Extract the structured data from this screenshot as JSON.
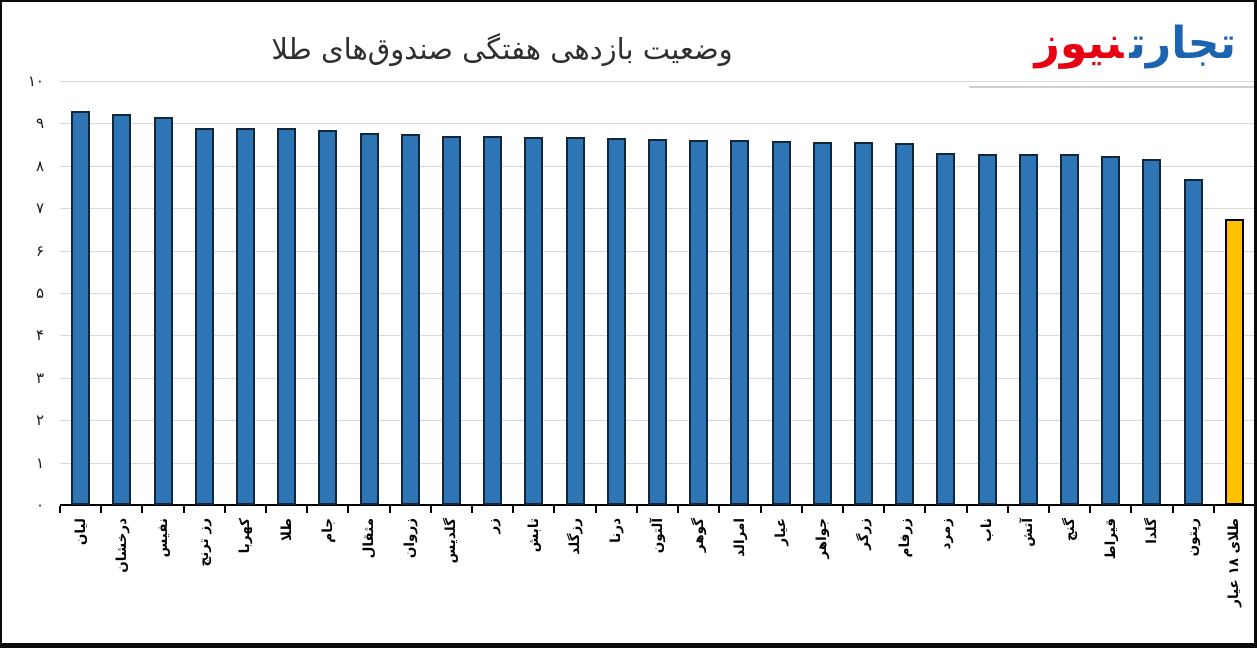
{
  "title": "وضعیت بازدهی هفتگی صندوق‌های طلا",
  "logo": {
    "word_right": "تجارت",
    "word_left": "نیوز",
    "word_right_color": "#1c63b0",
    "word_left_color": "#e60012",
    "underline_color": "#cfcfcf"
  },
  "chart_data": {
    "type": "bar",
    "title": "وضعیت بازدهی هفتگی صندوق‌های طلا",
    "categories": [
      "لیان",
      "درخشان",
      "نفیس",
      "رز ترنج",
      "کهربا",
      "طلا",
      "جام",
      "مثقال",
      "زروان",
      "گلدیس",
      "زر",
      "تابش",
      "رزگلد",
      "درنا",
      "آلتون",
      "گوهر",
      "امرالد",
      "عیار",
      "جواهر",
      "زرگر",
      "زرفام",
      "زمرد",
      "ناب",
      "آتش",
      "گنج",
      "قیراط",
      "گلدا",
      "ریتون",
      "طلای ۱۸ عیار"
    ],
    "values": [
      9.3,
      9.22,
      9.14,
      8.9,
      8.88,
      8.88,
      8.85,
      8.77,
      8.74,
      8.7,
      8.7,
      8.68,
      8.67,
      8.65,
      8.63,
      8.62,
      8.61,
      8.58,
      8.56,
      8.55,
      8.54,
      8.3,
      8.28,
      8.28,
      8.27,
      8.22,
      8.17,
      7.7,
      6.75
    ],
    "highlight_index": 28,
    "ylim": [
      0,
      10
    ],
    "ytick_values": [
      0,
      1,
      2,
      3,
      4,
      5,
      6,
      7,
      8,
      9,
      10
    ],
    "ytick_labels": [
      "۰",
      "۱",
      "۲",
      "۳",
      "۴",
      "۵",
      "۶",
      "۷",
      "۸",
      "۹",
      "۱۰"
    ],
    "grid": "horizontal",
    "legend": "none",
    "colors": {
      "bar_fill": "#2e75b6",
      "bar_border": "#12273c",
      "highlight_fill": "#ffc000",
      "highlight_border": "#000000",
      "gridline": "#d9d9d9",
      "axis": "#000000"
    }
  }
}
